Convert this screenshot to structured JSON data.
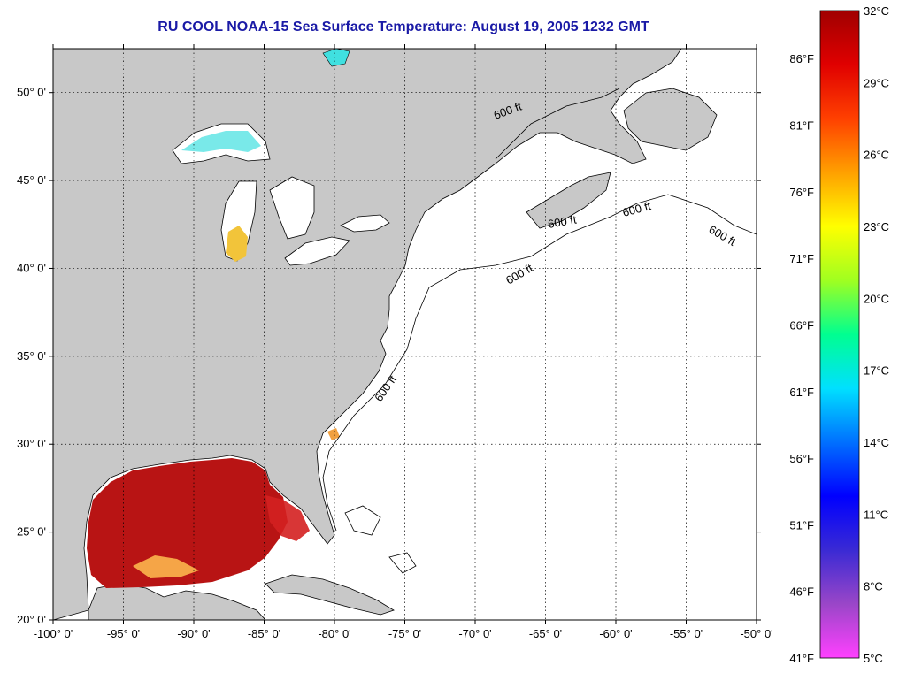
{
  "title": "RU COOL  NOAA-15  Sea Surface Temperature:  August 19, 2005 1232 GMT",
  "map": {
    "lon_range": [
      -100,
      -50
    ],
    "lat_range": [
      20,
      52.5
    ],
    "lat_labels": [
      {
        "value": 20,
        "text": "20° 0'"
      },
      {
        "value": 25,
        "text": "25° 0'"
      },
      {
        "value": 30,
        "text": "30° 0'"
      },
      {
        "value": 35,
        "text": "35° 0'"
      },
      {
        "value": 40,
        "text": "40° 0'"
      },
      {
        "value": 45,
        "text": "45° 0'"
      },
      {
        "value": 50,
        "text": "50° 0'"
      }
    ],
    "lon_labels": [
      {
        "value": -100,
        "text": "-100° 0'"
      },
      {
        "value": -95,
        "text": "-95° 0'"
      },
      {
        "value": -90,
        "text": "-90° 0'"
      },
      {
        "value": -85,
        "text": "-85° 0'"
      },
      {
        "value": -80,
        "text": "-80° 0'"
      },
      {
        "value": -75,
        "text": "-75° 0'"
      },
      {
        "value": -70,
        "text": "-70° 0'"
      },
      {
        "value": -65,
        "text": "-65° 0'"
      },
      {
        "value": -60,
        "text": "-60° 0'"
      },
      {
        "value": -55,
        "text": "-55° 0'"
      },
      {
        "value": -50,
        "text": "-50° 0'"
      }
    ],
    "isobath_label": "600 ft",
    "colors": {
      "land": "#c8c8c8",
      "ocean": "#ffffff",
      "sst_warm": "#b81414",
      "sst_hot": "#d42020",
      "grid": "#000000"
    }
  },
  "colorbar": {
    "range_c": [
      5,
      32
    ],
    "celsius_labels": [
      {
        "value": 5,
        "text": "5°C"
      },
      {
        "value": 8,
        "text": "8°C"
      },
      {
        "value": 11,
        "text": "11°C"
      },
      {
        "value": 14,
        "text": "14°C"
      },
      {
        "value": 17,
        "text": "17°C"
      },
      {
        "value": 20,
        "text": "20°C"
      },
      {
        "value": 23,
        "text": "23°C"
      },
      {
        "value": 26,
        "text": "26°C"
      },
      {
        "value": 29,
        "text": "29°C"
      },
      {
        "value": 32,
        "text": "32°C"
      }
    ],
    "fahrenheit_labels": [
      {
        "value": 5,
        "text": "41°F"
      },
      {
        "value": 7.78,
        "text": "46°F"
      },
      {
        "value": 10.56,
        "text": "51°F"
      },
      {
        "value": 13.33,
        "text": "56°F"
      },
      {
        "value": 16.11,
        "text": "61°F"
      },
      {
        "value": 18.89,
        "text": "66°F"
      },
      {
        "value": 21.67,
        "text": "71°F"
      },
      {
        "value": 24.44,
        "text": "76°F"
      },
      {
        "value": 27.22,
        "text": "81°F"
      },
      {
        "value": 30.0,
        "text": "86°F"
      }
    ],
    "stops": [
      "#ff40ff",
      "#9a46c8",
      "#3a2ad4",
      "#0000ff",
      "#0070ff",
      "#00e0ff",
      "#00ff90",
      "#a0ff20",
      "#ffff00",
      "#ffa000",
      "#ff4000",
      "#e00000",
      "#a00000"
    ]
  }
}
